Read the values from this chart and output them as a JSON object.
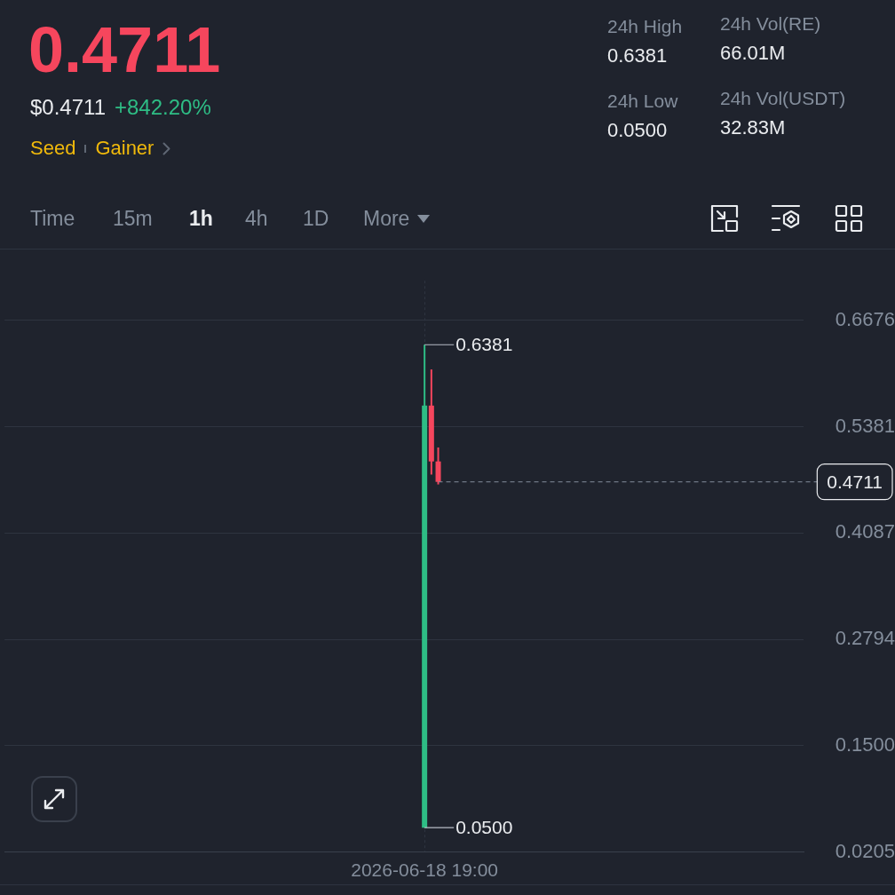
{
  "chart_data": {
    "type": "candlestick",
    "title": "0.4711",
    "categories": [
      null,
      null,
      null,
      null,
      null,
      null,
      null,
      null,
      null,
      null,
      null,
      null,
      null,
      null,
      null,
      null,
      null,
      null,
      null,
      null,
      null,
      null,
      null,
      null,
      null,
      null,
      null,
      null,
      null,
      null,
      null,
      null,
      null,
      null,
      null,
      null,
      null,
      null,
      null,
      null,
      null,
      null,
      null,
      null,
      null,
      null,
      null,
      null,
      null,
      null,
      null,
      null,
      null,
      null,
      null,
      null,
      null,
      null,
      null,
      null,
      null,
      "2026-06-18 19:00",
      null,
      null,
      null,
      null,
      null,
      null,
      null,
      null,
      null,
      null,
      null,
      null,
      null,
      null,
      null,
      null,
      null,
      null,
      null,
      null,
      null,
      null,
      null,
      null,
      null,
      null,
      null,
      null,
      null,
      null,
      null,
      null,
      null,
      null,
      null,
      null,
      null,
      null,
      null,
      null,
      null,
      null,
      null,
      null,
      null,
      null,
      null,
      null,
      null,
      null,
      null,
      null,
      null,
      null,
      null
    ],
    "ohlc": [
      null,
      null,
      null,
      null,
      null,
      null,
      null,
      null,
      null,
      null,
      null,
      null,
      null,
      null,
      null,
      null,
      null,
      null,
      null,
      null,
      null,
      null,
      null,
      null,
      null,
      null,
      null,
      null,
      null,
      null,
      null,
      null,
      null,
      null,
      null,
      null,
      null,
      null,
      null,
      null,
      null,
      null,
      null,
      null,
      null,
      null,
      null,
      null,
      null,
      null,
      null,
      null,
      null,
      null,
      null,
      null,
      null,
      null,
      null,
      null,
      null,
      [
        0.05,
        0.6381,
        0.05,
        0.564
      ],
      [
        0.564,
        0.608,
        0.48,
        0.496
      ],
      [
        0.496,
        0.513,
        0.468,
        0.4711
      ],
      null,
      null,
      null,
      null,
      null,
      null,
      null,
      null,
      null,
      null,
      null,
      null,
      null,
      null,
      null,
      null,
      null,
      null,
      null,
      null,
      null,
      null,
      null,
      null,
      null,
      null,
      null,
      null,
      null,
      null,
      null,
      null,
      null,
      null,
      null,
      null,
      null,
      null,
      null,
      null,
      null,
      null,
      null,
      null,
      null,
      null,
      null,
      null,
      null,
      null,
      null,
      null,
      null
    ],
    "colors": [
      null,
      null,
      null,
      null,
      null,
      null,
      null,
      null,
      null,
      null,
      null,
      null,
      null,
      null,
      null,
      null,
      null,
      null,
      null,
      null,
      null,
      null,
      null,
      null,
      null,
      null,
      null,
      null,
      null,
      null,
      null,
      null,
      null,
      null,
      null,
      null,
      null,
      null,
      null,
      null,
      null,
      null,
      null,
      null,
      null,
      null,
      null,
      null,
      null,
      null,
      null,
      null,
      null,
      null,
      null,
      null,
      null,
      null,
      null,
      null,
      null,
      "#2ebd85",
      "#f6465d",
      "#f6465d",
      null,
      null,
      null,
      null,
      null,
      null,
      null,
      null,
      null,
      null,
      null,
      null,
      null,
      null,
      null,
      null,
      null,
      null,
      null,
      null,
      null,
      null,
      null,
      null,
      null,
      null,
      null,
      null,
      null,
      null,
      null,
      null,
      null,
      null,
      null,
      null,
      null,
      null,
      null,
      null,
      null,
      null,
      null,
      null,
      null,
      null,
      null,
      null,
      null,
      null,
      null,
      null,
      null
    ],
    "ylim": [
      0.0205,
      0.716
    ],
    "yticks": [
      0.0205,
      {
        "value": 0.15,
        "label": "0.1500"
      },
      0.2794,
      0.4087,
      0.5381,
      0.6676
    ],
    "ref_lines": [
      {
        "axis": "y",
        "value": 0.4711,
        "label": "0.4711",
        "line_style": "dashed",
        "color": "#848e9c"
      }
    ],
    "annotations": [
      "$0.4711",
      "+842.20%",
      "Seed",
      "Gainer",
      "24h High",
      "0.6381",
      "24h Low",
      "0.0500",
      "24h Vol(RE)",
      "66.01M",
      "24h Vol(USDT)",
      "32.83M",
      "Time",
      "15m",
      "1h",
      "4h",
      "1D",
      "More",
      {
        "text": "0.6381",
        "x": "2026-06-18 19:00",
        "y": 0.6381
      },
      {
        "text": "0.0500",
        "x": "2026-06-18 19:00",
        "y": 0.05
      }
    ],
    "grid": true
  }
}
